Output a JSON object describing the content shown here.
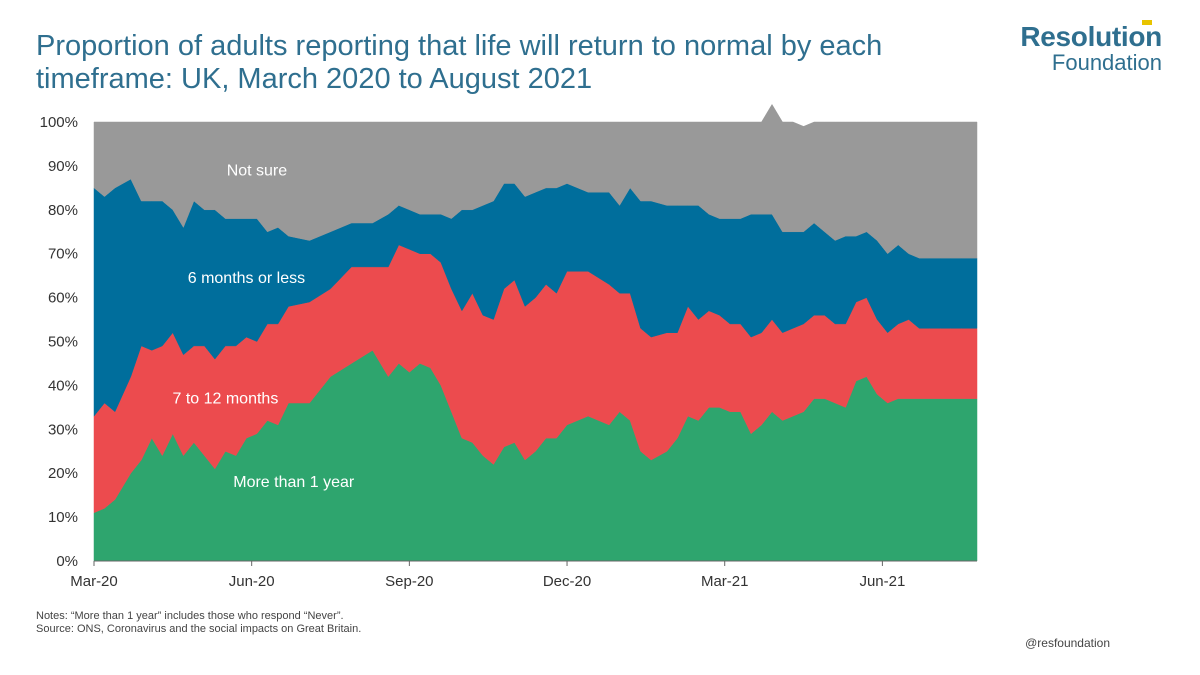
{
  "header": {
    "title": "Proportion of adults reporting that life will return to normal by each timeframe: UK, March 2020 to August 2021"
  },
  "logo": {
    "name": "Resolution",
    "sub": "Foundation"
  },
  "footer": {
    "note": "Notes: “More than 1 year” includes those who respond “Never”.",
    "source": "Source: ONS, Coronavirus and the social impacts on Great Britain.",
    "handle": "@resfoundation"
  },
  "chart_data": {
    "type": "area",
    "stacked": true,
    "y_ticks": [
      "0%",
      "10%",
      "20%",
      "30%",
      "40%",
      "50%",
      "60%",
      "70%",
      "80%",
      "90%",
      "100%"
    ],
    "ylim": [
      0,
      100
    ],
    "x_ticks": [
      {
        "label": "Mar-20",
        "x": 0
      },
      {
        "label": "Jun-20",
        "x": 3
      },
      {
        "label": "Sep-20",
        "x": 6
      },
      {
        "label": "Dec-20",
        "x": 9
      },
      {
        "label": "Mar-21",
        "x": 12
      },
      {
        "label": "Jun-21",
        "x": 15
      }
    ],
    "xlim": [
      0,
      16.8
    ],
    "x": [
      0,
      0.2,
      0.4,
      0.7,
      0.9,
      1.1,
      1.3,
      1.5,
      1.7,
      1.9,
      2.1,
      2.3,
      2.5,
      2.7,
      2.9,
      3.1,
      3.3,
      3.5,
      3.7,
      4.1,
      4.5,
      4.9,
      5.3,
      5.6,
      5.8,
      6.0,
      6.2,
      6.4,
      6.6,
      6.8,
      7.0,
      7.2,
      7.4,
      7.6,
      7.8,
      8.0,
      8.2,
      8.4,
      8.6,
      8.8,
      9.0,
      9.4,
      9.8,
      10.0,
      10.2,
      10.4,
      10.6,
      10.9,
      11.1,
      11.3,
      11.5,
      11.7,
      11.9,
      12.1,
      12.3,
      12.5,
      12.7,
      12.9,
      13.1,
      13.3,
      13.5,
      13.7,
      13.9,
      14.1,
      14.3,
      14.5,
      14.7,
      14.9,
      15.1,
      15.3,
      15.5,
      15.7,
      15.9,
      16.1,
      16.3,
      16.5,
      16.8
    ],
    "series": [
      {
        "name": "More than 1 year",
        "color": "#2ea56e",
        "values": [
          11,
          12,
          14,
          20,
          23,
          28,
          24,
          29,
          24,
          27,
          24,
          21,
          25,
          24,
          28,
          29,
          32,
          31,
          36,
          36,
          42,
          45,
          48,
          42,
          45,
          43,
          45,
          44,
          40,
          34,
          28,
          27,
          24,
          22,
          26,
          27,
          23,
          25,
          28,
          28,
          31,
          33,
          31,
          34,
          32,
          25,
          23,
          25,
          28,
          33,
          32,
          35,
          35,
          34,
          34,
          29,
          31,
          34,
          32,
          33,
          34,
          37,
          37,
          36,
          35,
          41,
          42,
          38,
          36,
          37,
          37,
          37,
          37,
          37,
          37,
          37,
          37
        ]
      },
      {
        "name": "7 to 12 months",
        "color": "#ec4b4e",
        "values": [
          22,
          24,
          20,
          22,
          26,
          20,
          25,
          23,
          23,
          22,
          25,
          25,
          24,
          25,
          23,
          21,
          22,
          23,
          22,
          23,
          20,
          22,
          19,
          25,
          27,
          28,
          25,
          26,
          28,
          28,
          29,
          34,
          32,
          33,
          36,
          37,
          35,
          35,
          35,
          33,
          35,
          33,
          32,
          27,
          29,
          28,
          28,
          27,
          24,
          25,
          23,
          22,
          21,
          20,
          20,
          22,
          21,
          21,
          20,
          20,
          20,
          19,
          19,
          18,
          19,
          18,
          18,
          17,
          16,
          17,
          18,
          16,
          16,
          16,
          16,
          16,
          16
        ]
      },
      {
        "name": "6 months or less",
        "color": "#006e9c",
        "values": [
          52,
          47,
          51,
          45,
          33,
          34,
          33,
          28,
          29,
          33,
          31,
          34,
          29,
          29,
          27,
          28,
          21,
          22,
          16,
          14,
          13,
          10,
          10,
          12,
          9,
          9,
          9,
          9,
          11,
          16,
          23,
          19,
          25,
          27,
          24,
          22,
          25,
          24,
          22,
          24,
          20,
          18,
          21,
          20,
          24,
          29,
          31,
          29,
          29,
          23,
          26,
          22,
          22,
          24,
          24,
          28,
          27,
          24,
          23,
          22,
          21,
          21,
          19,
          19,
          20,
          15,
          15,
          18,
          18,
          18,
          15,
          16,
          16,
          16,
          16,
          16,
          16
        ]
      },
      {
        "name": "Not sure",
        "color": "#999999",
        "values": [
          15,
          17,
          15,
          13,
          18,
          18,
          18,
          20,
          24,
          18,
          20,
          20,
          22,
          22,
          22,
          22,
          25,
          24,
          26,
          27,
          25,
          23,
          23,
          21,
          19,
          20,
          21,
          21,
          21,
          22,
          20,
          20,
          19,
          18,
          14,
          14,
          17,
          16,
          15,
          15,
          14,
          16,
          16,
          19,
          15,
          18,
          18,
          19,
          19,
          19,
          19,
          21,
          22,
          22,
          22,
          21,
          21,
          25,
          25,
          25,
          24,
          23,
          25,
          27,
          26,
          26,
          25,
          27,
          30,
          28,
          30,
          31,
          31,
          31,
          31,
          31,
          31
        ]
      }
    ],
    "annotations": [
      {
        "text": "Not sure",
        "series": 3,
        "at_x": 3.1
      },
      {
        "text": "6 months or less",
        "series": 2,
        "at_x": 2.9
      },
      {
        "text": "7 to 12 months",
        "series": 1,
        "at_x": 2.5
      },
      {
        "text": "More than 1 year",
        "series": 0,
        "at_x": 3.8
      }
    ],
    "grid": false,
    "legend": "none"
  }
}
